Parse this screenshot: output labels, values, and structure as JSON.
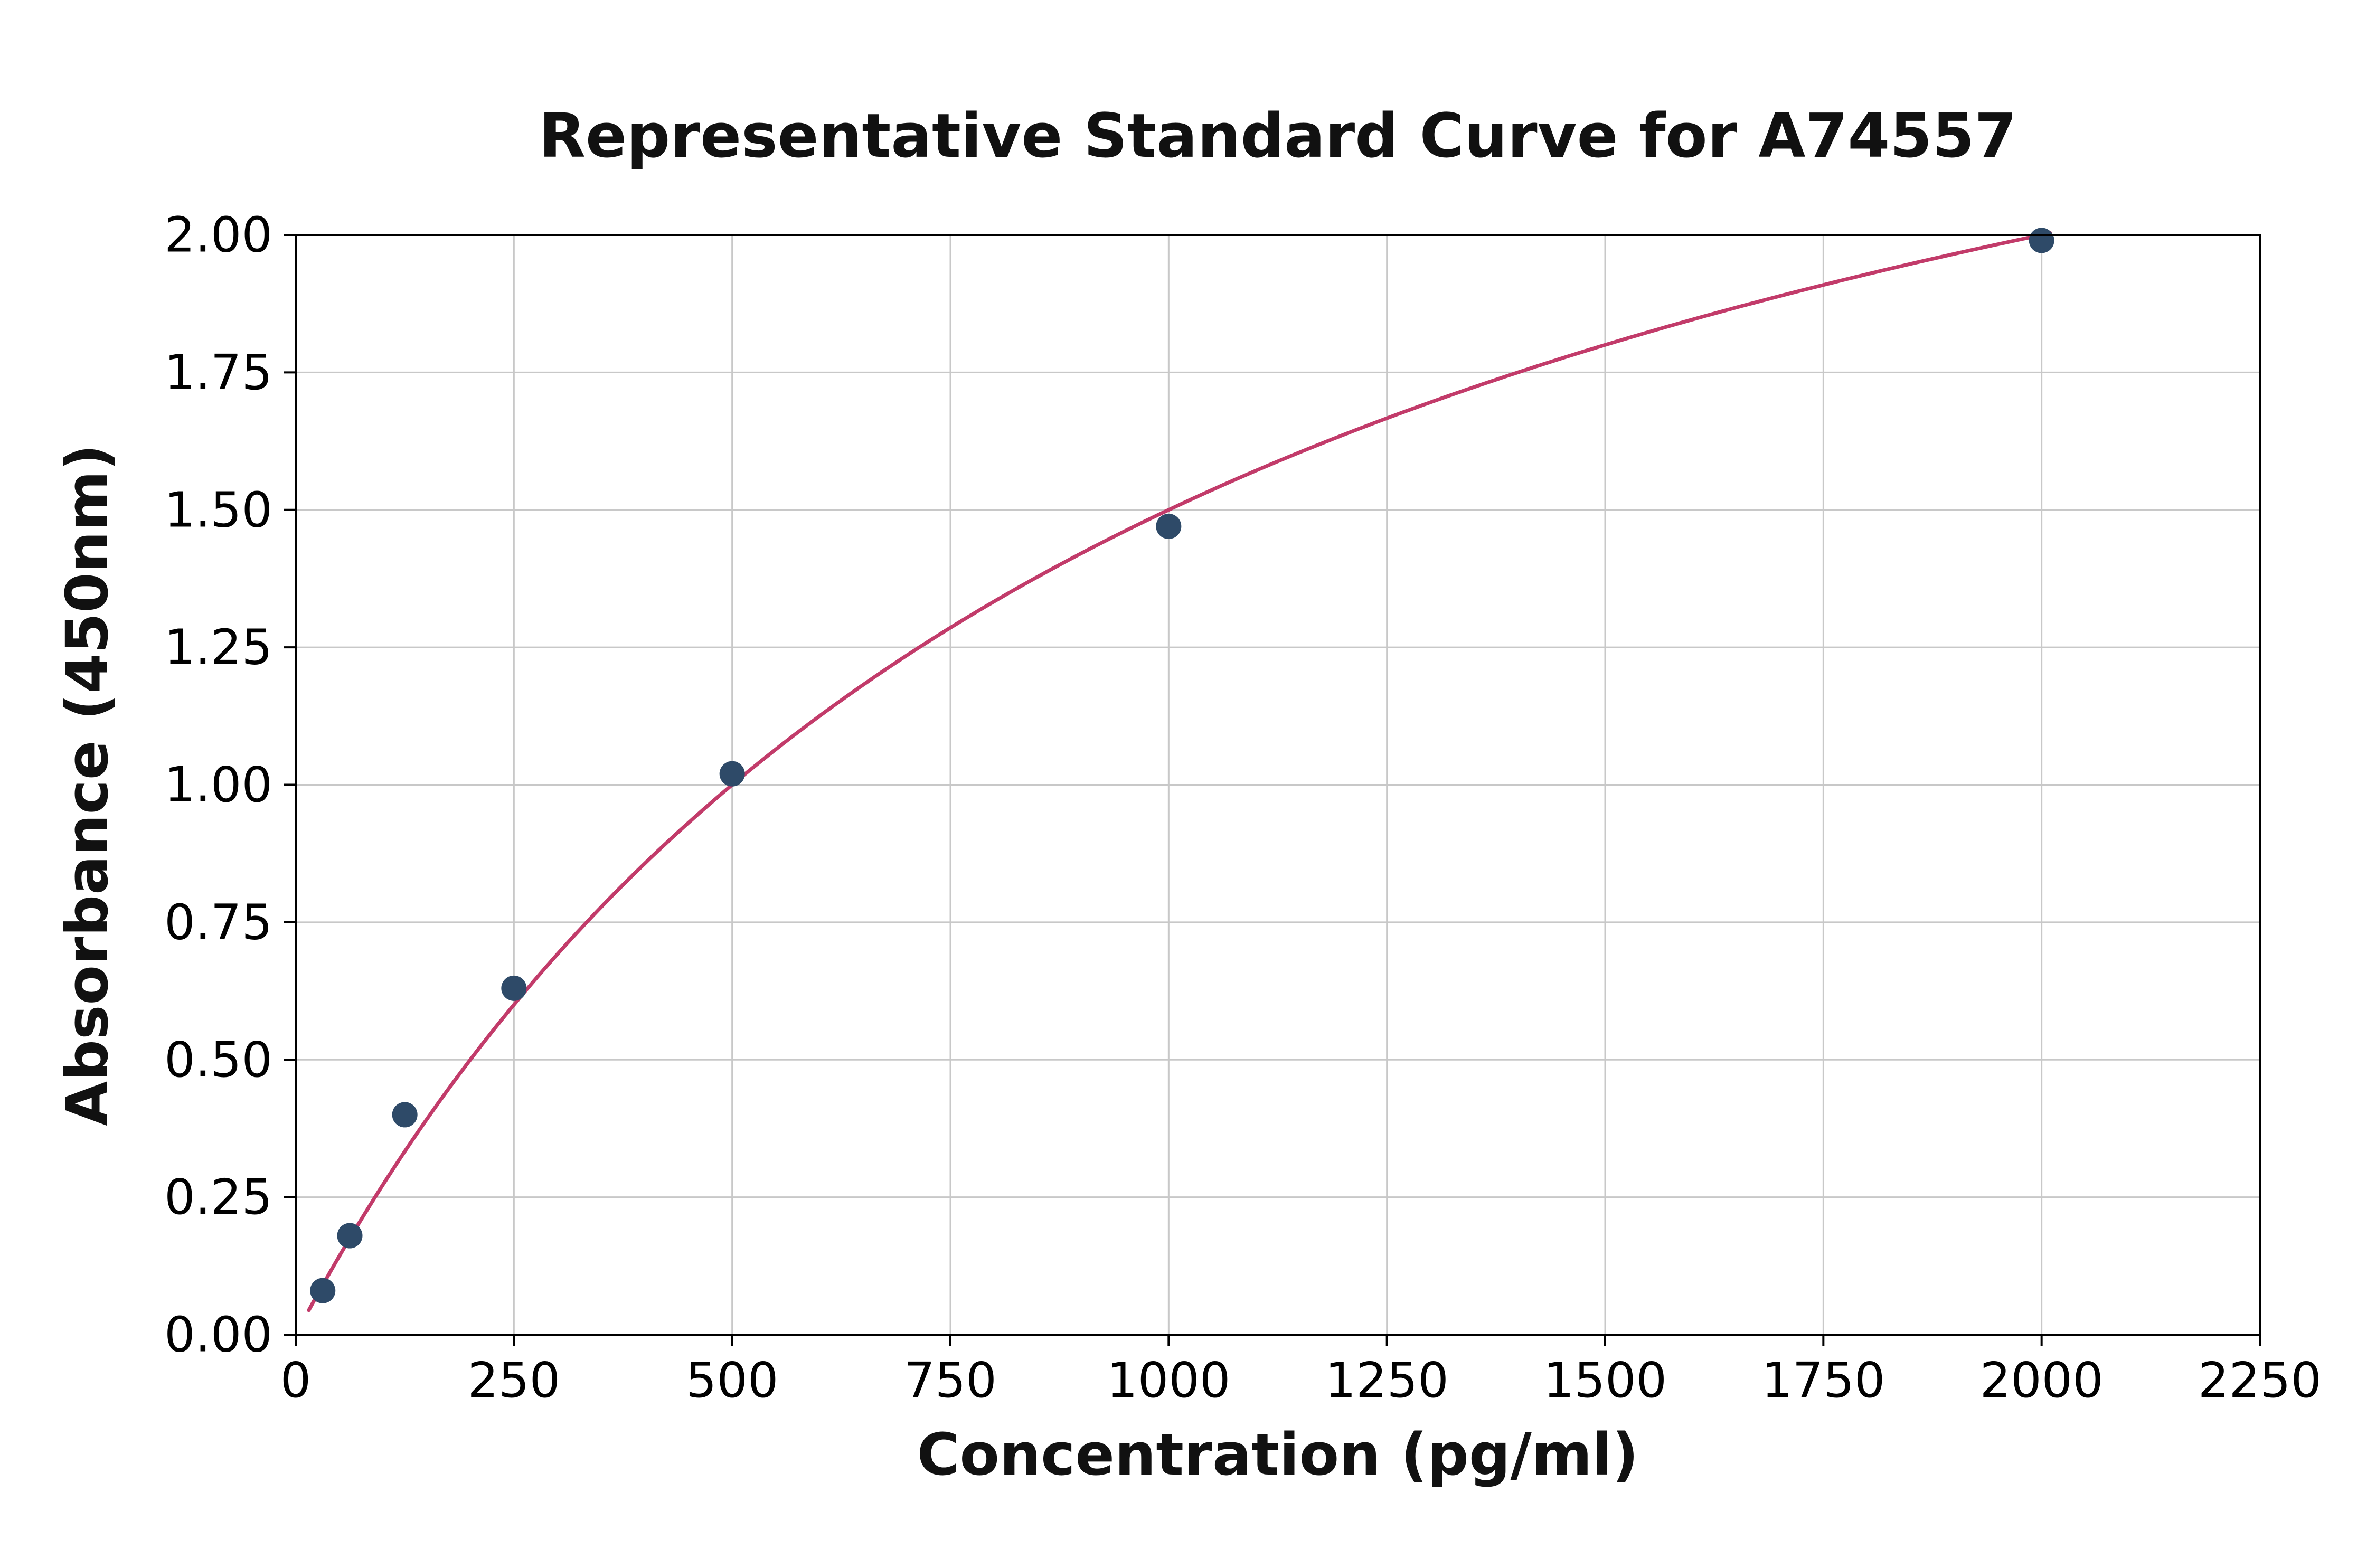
{
  "chart_data": {
    "type": "scatter",
    "title": "Representative Standard Curve for A74557",
    "xlabel": "Concentration (pg/ml)",
    "ylabel": "Absorbance (450nm)",
    "xlim": [
      0,
      2250
    ],
    "ylim": [
      0,
      2.0
    ],
    "grid": true,
    "legend": "none",
    "x_ticks": [
      {
        "v": 0,
        "label": "0"
      },
      {
        "v": 250,
        "label": "250"
      },
      {
        "v": 500,
        "label": "500"
      },
      {
        "v": 750,
        "label": "750"
      },
      {
        "v": 1000,
        "label": "1000"
      },
      {
        "v": 1250,
        "label": "1250"
      },
      {
        "v": 1500,
        "label": "1500"
      },
      {
        "v": 1750,
        "label": "1750"
      },
      {
        "v": 2000,
        "label": "2000"
      },
      {
        "v": 2250,
        "label": "2250"
      }
    ],
    "y_ticks": [
      {
        "v": 0.0,
        "label": "0.00"
      },
      {
        "v": 0.25,
        "label": "0.25"
      },
      {
        "v": 0.5,
        "label": "0.50"
      },
      {
        "v": 0.75,
        "label": "0.75"
      },
      {
        "v": 1.0,
        "label": "1.00"
      },
      {
        "v": 1.25,
        "label": "1.25"
      },
      {
        "v": 1.5,
        "label": "1.50"
      },
      {
        "v": 1.75,
        "label": "1.75"
      },
      {
        "v": 2.0,
        "label": "2.00"
      }
    ],
    "points": [
      {
        "x": 31,
        "y": 0.08
      },
      {
        "x": 62,
        "y": 0.18
      },
      {
        "x": 125,
        "y": 0.4
      },
      {
        "x": 250,
        "y": 0.63
      },
      {
        "x": 500,
        "y": 1.02
      },
      {
        "x": 1000,
        "y": 1.47
      },
      {
        "x": 2000,
        "y": 1.99
      }
    ],
    "fit_curve": {
      "type": "saturation",
      "formula": "y = a*x/(b+x)",
      "a": 3.0,
      "b": 1000,
      "x_start": 15,
      "x_end": 2010
    },
    "colors": {
      "point": "#2e4a68",
      "line": "#c23b6a",
      "grid": "#c8c8c8",
      "axis": "#000000",
      "background": "#ffffff"
    }
  }
}
